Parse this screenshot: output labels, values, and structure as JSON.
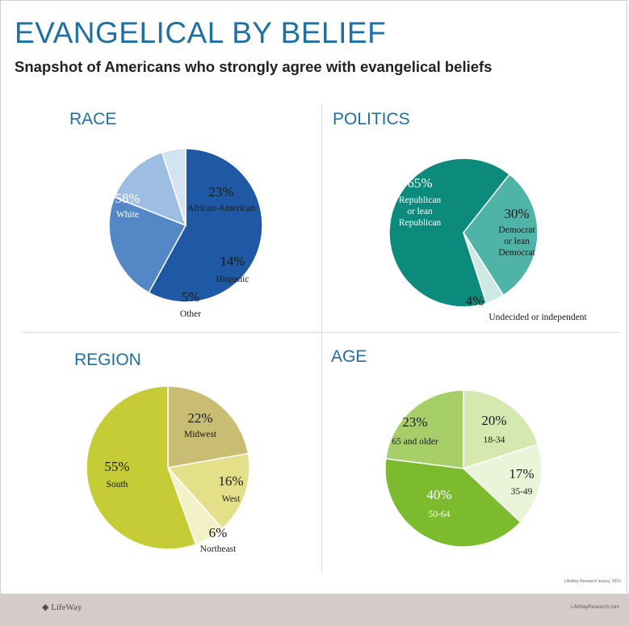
{
  "title": "EVANGELICAL BY BELIEF",
  "subtitle": "Snapshot of Americans who strongly agree with evangelical beliefs",
  "footer": {
    "logo": "LifeWay",
    "url": "LifeWayResearch.com"
  },
  "source_note": "LifeWay Research survey, 2015",
  "chart_data": [
    {
      "type": "pie",
      "title": "RACE",
      "slices": [
        {
          "label": "White",
          "value": 58,
          "pct": "58%",
          "color": "#1f58a4",
          "text_color": "#ffffff"
        },
        {
          "label": "African-American",
          "value": 23,
          "pct": "23%",
          "color": "#5387c5",
          "text_color": "#1b1b1b"
        },
        {
          "label": "Hispanic",
          "value": 14,
          "pct": "14%",
          "color": "#9dbde3",
          "text_color": "#1b1b1b"
        },
        {
          "label": "Other",
          "value": 5,
          "pct": "5%",
          "color": "#d3e3f3",
          "text_color": "#1b1b1b"
        }
      ]
    },
    {
      "type": "pie",
      "title": "POLITICS",
      "slices": [
        {
          "label": "Republican or lean Republican",
          "value": 65,
          "pct": "65%",
          "color": "#0c8a7c",
          "text_color": "#ffffff"
        },
        {
          "label": "Democrat or lean Democrat",
          "value": 30,
          "pct": "30%",
          "color": "#4fb3a8",
          "text_color": "#1b1b1b"
        },
        {
          "label": "Undecided or independent",
          "value": 4,
          "pct": "4%",
          "color": "#cde9e4",
          "text_color": "#1b1b1b"
        }
      ]
    },
    {
      "type": "pie",
      "title": "REGION",
      "slices": [
        {
          "label": "Midwest",
          "value": 22,
          "pct": "22%",
          "color": "#c8bd72",
          "text_color": "#1b1b1b"
        },
        {
          "label": "West",
          "value": 16,
          "pct": "16%",
          "color": "#e4e08a",
          "text_color": "#1b1b1b"
        },
        {
          "label": "Northeast",
          "value": 6,
          "pct": "6%",
          "color": "#f3f2c6",
          "text_color": "#1b1b1b"
        },
        {
          "label": "South",
          "value": 55,
          "pct": "55%",
          "color": "#c6cc35",
          "text_color": "#1b1b1b"
        }
      ]
    },
    {
      "type": "pie",
      "title": "AGE",
      "slices": [
        {
          "label": "18-34",
          "value": 20,
          "pct": "20%",
          "color": "#d4e8b0",
          "text_color": "#1b1b1b"
        },
        {
          "label": "35-49",
          "value": 17,
          "pct": "17%",
          "color": "#eaf4d8",
          "text_color": "#1b1b1b"
        },
        {
          "label": "50-64",
          "value": 40,
          "pct": "40%",
          "color": "#7cba2e",
          "text_color": "#ffffff"
        },
        {
          "label": "65 and older",
          "value": 23,
          "pct": "23%",
          "color": "#a6cf6a",
          "text_color": "#1b1b1b"
        }
      ]
    }
  ]
}
